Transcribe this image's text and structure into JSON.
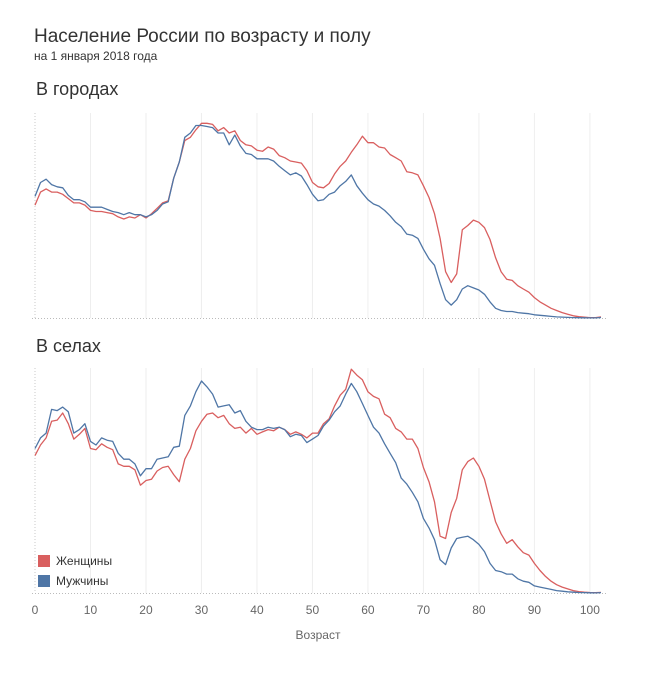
{
  "title": "Население России по возрасту и полу",
  "subtitle": "на 1 января 2018 года",
  "legend": {
    "women": "Женщины",
    "men": "Мужчины"
  },
  "colors": {
    "women": "#d95f5f",
    "men": "#4f76a6"
  },
  "chart_data": [
    {
      "type": "line",
      "title": "В городах",
      "xlabel": "",
      "ylabel": "",
      "xlim": [
        0,
        102
      ],
      "x_ticks": [
        0,
        10,
        20,
        30,
        40,
        50,
        60,
        70,
        80,
        90,
        100
      ],
      "grid": true,
      "x": [
        0,
        1,
        2,
        3,
        4,
        5,
        6,
        7,
        8,
        9,
        10,
        11,
        12,
        13,
        14,
        15,
        16,
        17,
        18,
        19,
        20,
        21,
        22,
        23,
        24,
        25,
        26,
        27,
        28,
        29,
        30,
        31,
        32,
        33,
        34,
        35,
        36,
        37,
        38,
        39,
        40,
        41,
        42,
        43,
        44,
        45,
        46,
        47,
        48,
        49,
        50,
        51,
        52,
        53,
        54,
        55,
        56,
        57,
        58,
        59,
        60,
        61,
        62,
        63,
        64,
        65,
        66,
        67,
        68,
        69,
        70,
        71,
        72,
        73,
        74,
        75,
        76,
        77,
        78,
        79,
        80,
        81,
        82,
        83,
        84,
        85,
        86,
        87,
        88,
        89,
        90,
        91,
        92,
        93,
        94,
        95,
        96,
        97,
        98,
        99,
        100,
        101,
        102
      ],
      "series": [
        {
          "name": "Женщины",
          "values": [
            1.05,
            1.17,
            1.2,
            1.17,
            1.17,
            1.15,
            1.11,
            1.07,
            1.07,
            1.05,
            1.0,
            0.99,
            0.99,
            0.98,
            0.97,
            0.94,
            0.92,
            0.94,
            0.93,
            0.96,
            0.93,
            0.97,
            1.02,
            1.07,
            1.09,
            1.3,
            1.45,
            1.65,
            1.68,
            1.75,
            1.81,
            1.81,
            1.8,
            1.74,
            1.77,
            1.72,
            1.74,
            1.65,
            1.61,
            1.6,
            1.56,
            1.55,
            1.59,
            1.57,
            1.51,
            1.49,
            1.46,
            1.45,
            1.44,
            1.37,
            1.26,
            1.22,
            1.21,
            1.25,
            1.34,
            1.41,
            1.46,
            1.54,
            1.61,
            1.69,
            1.63,
            1.63,
            1.59,
            1.58,
            1.52,
            1.49,
            1.46,
            1.36,
            1.35,
            1.33,
            1.23,
            1.12,
            0.97,
            0.74,
            0.43,
            0.33,
            0.41,
            0.82,
            0.86,
            0.91,
            0.89,
            0.84,
            0.73,
            0.56,
            0.43,
            0.36,
            0.35,
            0.3,
            0.27,
            0.24,
            0.19,
            0.15,
            0.12,
            0.09,
            0.07,
            0.05,
            0.035,
            0.02,
            0.012,
            0.007,
            0.004,
            0.003,
            0.01
          ]
        },
        {
          "name": "Мужчины",
          "values": [
            1.13,
            1.26,
            1.29,
            1.24,
            1.22,
            1.21,
            1.14,
            1.1,
            1.1,
            1.08,
            1.03,
            1.03,
            1.03,
            1.01,
            0.99,
            0.98,
            0.96,
            0.98,
            0.96,
            0.96,
            0.94,
            0.96,
            1.0,
            1.06,
            1.08,
            1.3,
            1.45,
            1.68,
            1.72,
            1.79,
            1.79,
            1.78,
            1.77,
            1.72,
            1.72,
            1.61,
            1.7,
            1.6,
            1.53,
            1.52,
            1.48,
            1.48,
            1.48,
            1.46,
            1.41,
            1.37,
            1.33,
            1.35,
            1.32,
            1.24,
            1.15,
            1.09,
            1.1,
            1.15,
            1.17,
            1.23,
            1.27,
            1.33,
            1.23,
            1.16,
            1.1,
            1.06,
            1.04,
            1.0,
            0.95,
            0.89,
            0.85,
            0.78,
            0.77,
            0.74,
            0.64,
            0.55,
            0.49,
            0.32,
            0.17,
            0.12,
            0.17,
            0.27,
            0.3,
            0.28,
            0.26,
            0.22,
            0.15,
            0.09,
            0.07,
            0.06,
            0.06,
            0.05,
            0.045,
            0.04,
            0.03,
            0.025,
            0.02,
            0.015,
            0.01,
            0.008,
            0.006,
            0.004,
            0.003,
            0.002,
            0.001,
            0.001,
            0.005
          ]
        }
      ]
    },
    {
      "type": "line",
      "title": "В селах",
      "xlabel": "Возраст",
      "ylabel": "",
      "xlim": [
        0,
        102
      ],
      "x_ticks": [
        0,
        10,
        20,
        30,
        40,
        50,
        60,
        70,
        80,
        90,
        100
      ],
      "grid": true,
      "x": [
        0,
        1,
        2,
        3,
        4,
        5,
        6,
        7,
        8,
        9,
        10,
        11,
        12,
        13,
        14,
        15,
        16,
        17,
        18,
        19,
        20,
        21,
        22,
        23,
        24,
        25,
        26,
        27,
        28,
        29,
        30,
        31,
        32,
        33,
        34,
        35,
        36,
        37,
        38,
        39,
        40,
        41,
        42,
        43,
        44,
        45,
        46,
        47,
        48,
        49,
        50,
        51,
        52,
        53,
        54,
        55,
        56,
        57,
        58,
        59,
        60,
        61,
        62,
        63,
        64,
        65,
        66,
        67,
        68,
        69,
        70,
        71,
        72,
        73,
        74,
        75,
        76,
        77,
        78,
        79,
        80,
        81,
        82,
        83,
        84,
        85,
        86,
        87,
        88,
        89,
        90,
        91,
        92,
        93,
        94,
        95,
        96,
        97,
        98,
        99,
        100,
        101,
        102
      ],
      "series": [
        {
          "name": "Женщины",
          "values": [
            1.16,
            1.25,
            1.31,
            1.45,
            1.46,
            1.52,
            1.43,
            1.3,
            1.34,
            1.39,
            1.22,
            1.21,
            1.26,
            1.23,
            1.21,
            1.09,
            1.07,
            1.07,
            1.04,
            0.91,
            0.95,
            0.96,
            1.03,
            1.06,
            1.07,
            1.0,
            0.94,
            1.13,
            1.22,
            1.37,
            1.45,
            1.51,
            1.52,
            1.48,
            1.5,
            1.43,
            1.39,
            1.4,
            1.35,
            1.39,
            1.34,
            1.36,
            1.38,
            1.37,
            1.4,
            1.38,
            1.34,
            1.36,
            1.34,
            1.31,
            1.35,
            1.35,
            1.43,
            1.47,
            1.58,
            1.67,
            1.72,
            1.89,
            1.84,
            1.8,
            1.7,
            1.66,
            1.64,
            1.51,
            1.48,
            1.39,
            1.36,
            1.3,
            1.3,
            1.22,
            1.06,
            0.94,
            0.77,
            0.48,
            0.46,
            0.68,
            0.8,
            1.04,
            1.11,
            1.14,
            1.07,
            0.96,
            0.78,
            0.6,
            0.5,
            0.42,
            0.45,
            0.39,
            0.34,
            0.32,
            0.25,
            0.19,
            0.14,
            0.1,
            0.07,
            0.05,
            0.035,
            0.02,
            0.012,
            0.007,
            0.004,
            0.003,
            0.005
          ]
        },
        {
          "name": "Мужчины",
          "values": [
            1.22,
            1.31,
            1.35,
            1.55,
            1.54,
            1.57,
            1.53,
            1.35,
            1.38,
            1.43,
            1.28,
            1.25,
            1.31,
            1.29,
            1.28,
            1.18,
            1.13,
            1.13,
            1.09,
            0.99,
            1.05,
            1.05,
            1.13,
            1.14,
            1.15,
            1.23,
            1.24,
            1.5,
            1.58,
            1.7,
            1.79,
            1.74,
            1.68,
            1.57,
            1.58,
            1.59,
            1.52,
            1.54,
            1.45,
            1.4,
            1.38,
            1.38,
            1.4,
            1.39,
            1.4,
            1.38,
            1.32,
            1.34,
            1.33,
            1.27,
            1.3,
            1.33,
            1.41,
            1.46,
            1.53,
            1.58,
            1.68,
            1.77,
            1.7,
            1.6,
            1.5,
            1.4,
            1.35,
            1.26,
            1.18,
            1.1,
            0.97,
            0.92,
            0.85,
            0.77,
            0.63,
            0.55,
            0.45,
            0.28,
            0.24,
            0.38,
            0.46,
            0.47,
            0.48,
            0.45,
            0.41,
            0.35,
            0.25,
            0.19,
            0.18,
            0.16,
            0.16,
            0.12,
            0.1,
            0.09,
            0.06,
            0.05,
            0.04,
            0.03,
            0.02,
            0.015,
            0.01,
            0.007,
            0.004,
            0.003,
            0.002,
            0.001,
            0.003
          ]
        }
      ]
    }
  ]
}
